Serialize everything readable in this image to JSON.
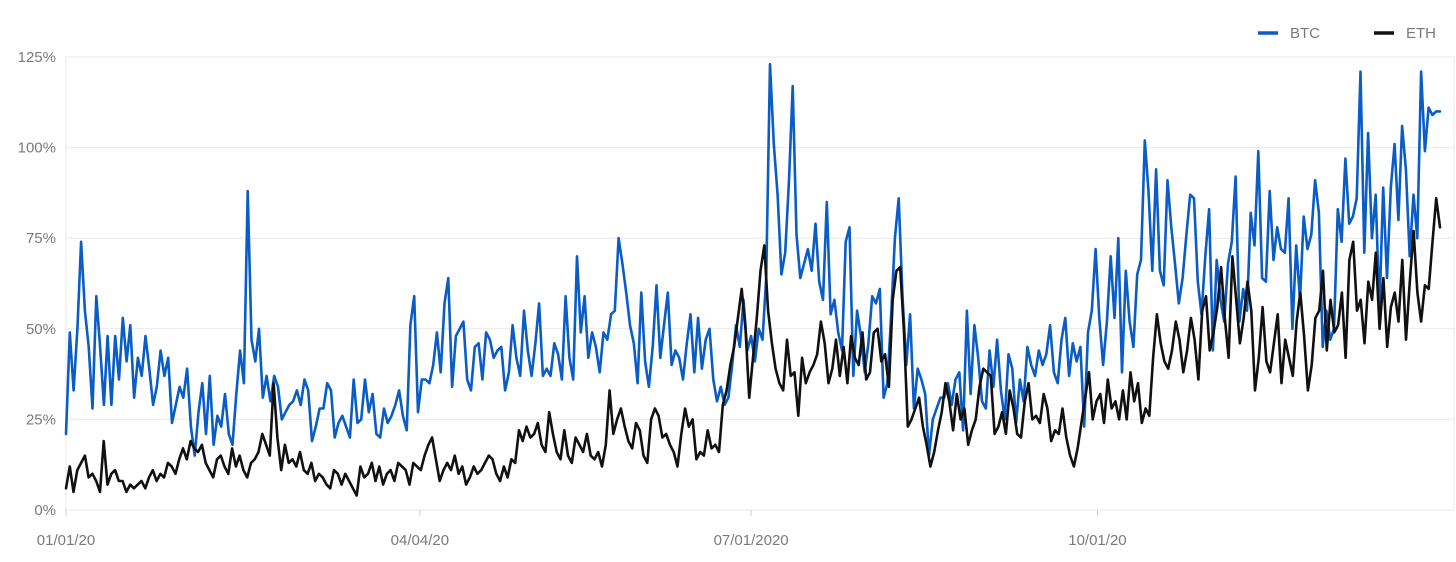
{
  "chart_data": {
    "type": "line",
    "title": "",
    "xlabel": "",
    "ylabel": "",
    "ylim": [
      0,
      125
    ],
    "y_ticks": [
      0,
      25,
      50,
      75,
      100,
      125
    ],
    "y_tick_labels": [
      "0%",
      "25%",
      "50%",
      "75%",
      "100%",
      "125%"
    ],
    "x_ticks": [
      {
        "label": "01/01/20",
        "date": "2020-01-01"
      },
      {
        "label": "04/04/20",
        "date": "2020-04-04"
      },
      {
        "label": "07/01/2020",
        "date": "2020-07-01"
      },
      {
        "label": "10/01/20",
        "date": "2020-10-01"
      }
    ],
    "x_start": "2020-01-01",
    "x_end": "2020-12-31",
    "grid": "horizontal",
    "legend_position": "top-right",
    "series": [
      {
        "name": "BTC",
        "color": "#0a5cc7",
        "values": [
          21,
          49,
          33,
          50,
          74,
          55,
          45,
          28,
          59,
          45,
          29,
          48,
          29,
          48,
          36,
          53,
          41,
          51,
          31,
          42,
          37,
          48,
          39,
          29,
          34,
          44,
          37,
          42,
          24,
          29,
          34,
          31,
          39,
          23,
          15,
          27,
          35,
          21,
          37,
          18,
          26,
          23,
          32,
          21,
          18,
          32,
          44,
          35,
          88,
          47,
          41,
          50,
          31,
          37,
          30,
          37,
          34,
          25,
          27,
          29,
          30,
          33,
          29,
          36,
          33,
          19,
          23,
          28,
          28,
          35,
          33,
          20,
          24,
          26,
          23,
          20,
          36,
          24,
          25,
          36,
          27,
          32,
          21,
          20,
          28,
          24,
          26,
          29,
          33,
          26,
          22,
          51,
          59,
          27,
          36,
          36,
          35,
          40,
          49,
          38,
          57,
          64,
          34,
          48,
          50,
          52,
          36,
          33,
          45,
          46,
          36,
          49,
          47,
          42,
          44,
          45,
          33,
          38,
          51,
          42,
          37,
          55,
          44,
          37,
          46,
          57,
          37,
          39,
          37,
          46,
          43,
          36,
          59,
          42,
          36,
          70,
          49,
          59,
          42,
          49,
          45,
          38,
          49,
          47,
          54,
          55,
          75,
          68,
          60,
          51,
          46,
          35,
          60,
          41,
          34,
          45,
          62,
          42,
          51,
          60,
          40,
          44,
          42,
          36,
          46,
          54,
          38,
          53,
          39,
          47,
          50,
          36,
          30,
          34,
          29,
          31,
          40,
          51,
          45,
          58,
          44,
          48,
          41,
          50,
          47,
          64,
          123,
          101,
          87,
          65,
          71,
          91,
          117,
          76,
          64,
          68,
          72,
          66,
          79,
          63,
          58,
          85,
          54,
          58,
          49,
          44,
          74,
          78,
          37,
          55,
          48,
          38,
          46,
          59,
          57,
          61,
          31,
          35,
          54,
          75,
          86,
          59,
          40,
          54,
          28,
          39,
          36,
          32,
          15,
          25,
          28,
          31,
          31,
          35,
          29,
          36,
          38,
          22,
          55,
          32,
          51,
          42,
          30,
          28,
          44,
          34,
          47,
          33,
          25,
          43,
          39,
          24,
          36,
          30,
          45,
          40,
          37,
          44,
          40,
          43,
          51,
          38,
          35,
          47,
          53,
          37,
          46,
          41,
          45,
          23,
          49,
          55,
          72,
          53,
          40,
          52,
          70,
          53,
          75,
          38,
          66,
          52,
          45,
          65,
          69,
          102,
          88,
          66,
          94,
          66,
          62,
          91,
          78,
          68,
          57,
          64,
          76,
          87,
          86,
          63,
          54,
          70,
          83,
          44,
          69,
          58,
          52,
          68,
          74,
          92,
          52,
          61,
          55,
          82,
          73,
          99,
          64,
          63,
          88,
          69,
          78,
          72,
          71,
          86,
          50,
          73,
          58,
          81,
          72,
          76,
          91,
          82,
          45,
          55,
          47,
          50,
          83,
          74,
          97,
          79,
          81,
          86,
          121,
          71,
          104,
          75,
          87,
          55,
          89,
          64,
          89,
          101,
          80,
          106,
          94,
          70,
          87,
          75,
          121,
          99,
          111,
          109,
          110,
          110
        ]
      },
      {
        "name": "ETH",
        "color": "#111111",
        "values": [
          6,
          12,
          5,
          11,
          13,
          15,
          9,
          10,
          8,
          5,
          19,
          7,
          10,
          11,
          8,
          8,
          5,
          7,
          6,
          7,
          8,
          6,
          9,
          11,
          8,
          10,
          9,
          13,
          12,
          10,
          14,
          17,
          14,
          19,
          17,
          16,
          18,
          13,
          11,
          9,
          14,
          15,
          12,
          10,
          17,
          12,
          15,
          11,
          9,
          13,
          14,
          16,
          21,
          18,
          15,
          35,
          20,
          11,
          18,
          13,
          14,
          12,
          16,
          11,
          10,
          13,
          8,
          10,
          9,
          7,
          6,
          11,
          10,
          7,
          10,
          8,
          6,
          4,
          12,
          9,
          10,
          13,
          8,
          12,
          7,
          10,
          11,
          8,
          13,
          12,
          11,
          7,
          13,
          12,
          11,
          15,
          18,
          20,
          14,
          8,
          11,
          13,
          11,
          15,
          10,
          12,
          7,
          9,
          12,
          10,
          11,
          13,
          15,
          14,
          10,
          8,
          12,
          9,
          14,
          13,
          22,
          19,
          23,
          20,
          21,
          24,
          18,
          16,
          27,
          21,
          16,
          14,
          22,
          15,
          13,
          20,
          18,
          16,
          21,
          15,
          14,
          16,
          12,
          18,
          33,
          21,
          25,
          28,
          23,
          19,
          17,
          24,
          22,
          15,
          13,
          25,
          28,
          26,
          20,
          21,
          18,
          16,
          12,
          21,
          28,
          23,
          25,
          14,
          16,
          15,
          22,
          17,
          18,
          16,
          29,
          33,
          40,
          45,
          53,
          61,
          50,
          31,
          42,
          53,
          66,
          73,
          55,
          46,
          39,
          35,
          33,
          47,
          37,
          38,
          26,
          42,
          35,
          38,
          40,
          43,
          52,
          46,
          35,
          39,
          47,
          37,
          45,
          35,
          48,
          42,
          40,
          49,
          36,
          38,
          49,
          50,
          41,
          43,
          34,
          58,
          66,
          67,
          49,
          23,
          25,
          28,
          31,
          23,
          18,
          12,
          16,
          22,
          27,
          35,
          30,
          22,
          32,
          25,
          28,
          18,
          22,
          25,
          34,
          39,
          38,
          37,
          21,
          23,
          27,
          21,
          33,
          28,
          21,
          20,
          30,
          35,
          25,
          26,
          24,
          32,
          28,
          19,
          22,
          21,
          28,
          20,
          15,
          12,
          17,
          24,
          31,
          38,
          25,
          30,
          32,
          24,
          36,
          28,
          30,
          25,
          33,
          25,
          38,
          30,
          35,
          24,
          28,
          26,
          42,
          54,
          46,
          41,
          39,
          44,
          52,
          47,
          38,
          44,
          53,
          47,
          36,
          55,
          59,
          44,
          49,
          56,
          67,
          53,
          42,
          70,
          58,
          46,
          53,
          63,
          55,
          33,
          42,
          56,
          41,
          38,
          46,
          54,
          35,
          47,
          42,
          37,
          52,
          60,
          48,
          33,
          40,
          53,
          55,
          66,
          44,
          58,
          49,
          51,
          60,
          42,
          69,
          74,
          55,
          58,
          46,
          63,
          58,
          71,
          50,
          64,
          45,
          56,
          60,
          52,
          69,
          47,
          63,
          77,
          60,
          52,
          62,
          61,
          74,
          86,
          78
        ]
      }
    ]
  }
}
